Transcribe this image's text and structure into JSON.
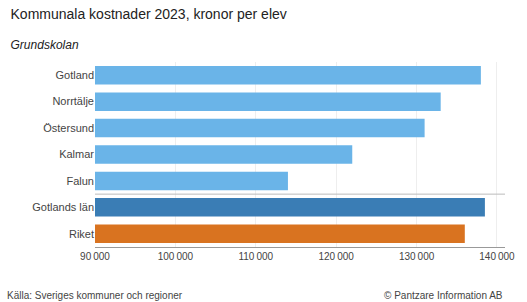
{
  "chart_data": {
    "type": "bar",
    "orientation": "horizontal",
    "title": "Kommunala kostnader 2023, kronor per elev",
    "subtitle": "Grundskolan",
    "categories": [
      "Gotland",
      "Norrtälje",
      "Östersund",
      "Kalmar",
      "Falun",
      "Gotlands län",
      "Riket"
    ],
    "values": [
      138000,
      133000,
      131000,
      122000,
      114000,
      138500,
      136000
    ],
    "colors": [
      "#6ab4e8",
      "#6ab4e8",
      "#6ab4e8",
      "#6ab4e8",
      "#6ab4e8",
      "#3a7db5",
      "#d97320"
    ],
    "xlim": [
      90000,
      141000
    ],
    "xticks": [
      {
        "value": 90000,
        "label": "90 000"
      },
      {
        "value": 100000,
        "label": "100 000"
      },
      {
        "value": 110000,
        "label": "110 000"
      },
      {
        "value": 120000,
        "label": "120 000"
      },
      {
        "value": 130000,
        "label": "130 000"
      },
      {
        "value": 140000,
        "label": "140 000"
      }
    ],
    "grid": true,
    "annotations": [
      "Källa: Sveriges kommuner och regioner",
      "© Pantzare Information AB"
    ]
  }
}
